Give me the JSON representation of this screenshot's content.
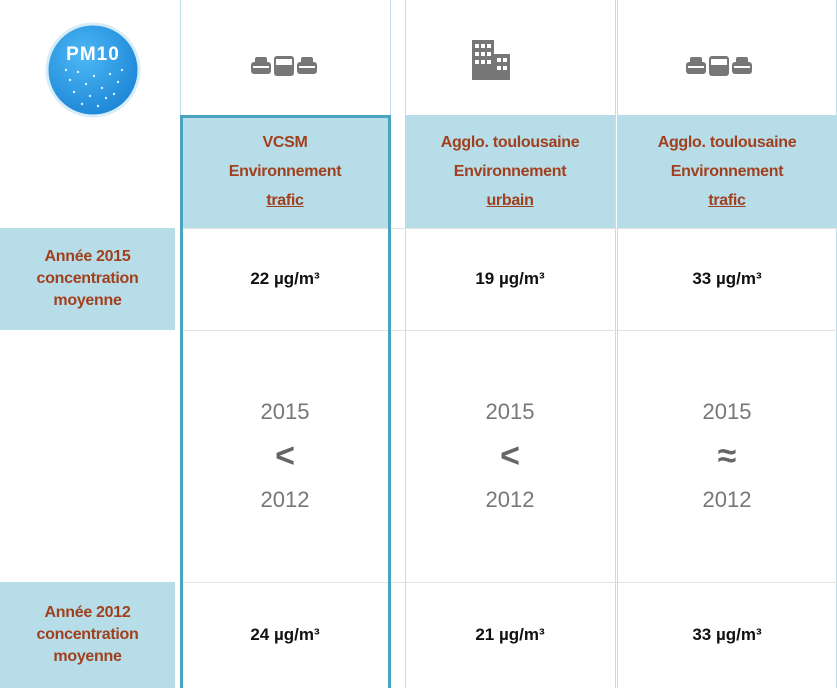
{
  "badge": "PM10",
  "columns": [
    {
      "name": "VCSM",
      "env": "Environnement",
      "kind": "trafic"
    },
    {
      "name": "Agglo. toulousaine",
      "env": "Environnement",
      "kind": "urbain"
    },
    {
      "name": "Agglo. toulousaine",
      "env": "Environnement",
      "kind": "trafic"
    }
  ],
  "rows": [
    {
      "label": [
        "Année 2015",
        "concentration",
        "moyenne"
      ],
      "values": [
        "22 µg/m³",
        "19 µg/m³",
        "33 µg/m³"
      ]
    },
    {
      "label": [
        "Année 2012",
        "concentration",
        "moyenne"
      ],
      "values": [
        "24 µg/m³",
        "21 µg/m³",
        "33 µg/m³"
      ]
    }
  ],
  "comparisons": [
    {
      "top": "2015",
      "symbol": "<",
      "bottom": "2012"
    },
    {
      "top": "2015",
      "symbol": "<",
      "bottom": "2012"
    },
    {
      "top": "2015",
      "symbol": "≈",
      "bottom": "2012"
    }
  ]
}
